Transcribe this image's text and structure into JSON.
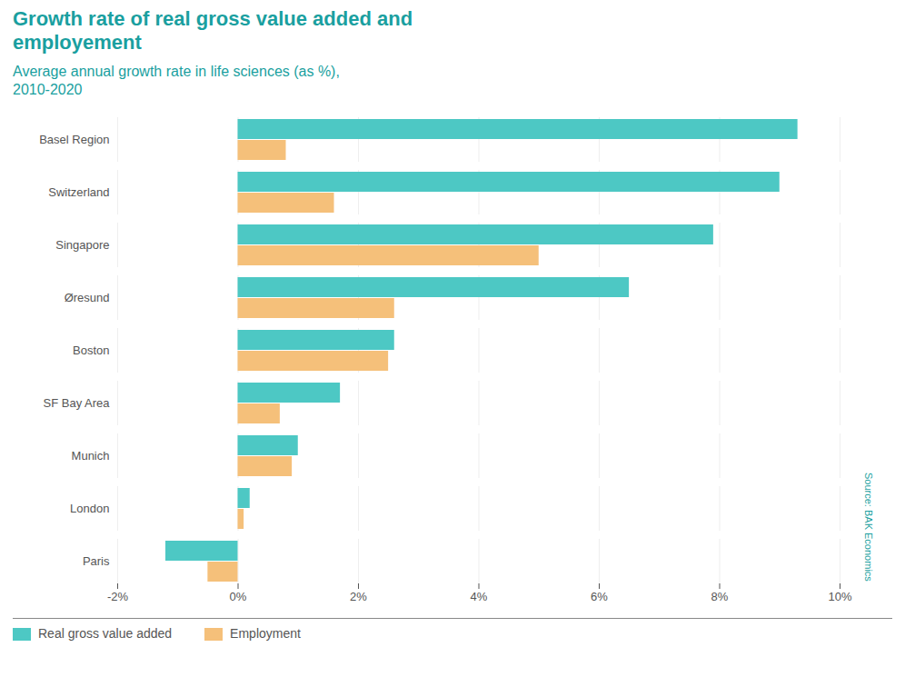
{
  "chart_data": {
    "type": "bar",
    "orientation": "horizontal",
    "title": "Growth rate of real gross value added and\nemployement",
    "subtitle": "Average annual growth rate in life sciences (as %),\n2010-2020",
    "annotations": [
      "Source: BAK Economics"
    ],
    "categories": [
      "Basel Region",
      "Switzerland",
      "Singapore",
      "Øresund",
      "Boston",
      "SF Bay Area",
      "Munich",
      "London",
      "Paris"
    ],
    "series": [
      {
        "name": "Real gross value added",
        "color": "#4DC8C4",
        "values": [
          9.3,
          9.0,
          7.9,
          6.5,
          2.6,
          1.7,
          1.0,
          0.2,
          -1.2
        ]
      },
      {
        "name": "Employment",
        "color": "#F5C07A",
        "values": [
          0.8,
          1.6,
          5.0,
          2.6,
          2.5,
          0.7,
          0.9,
          0.1,
          -0.5
        ]
      }
    ],
    "xlim": [
      -2,
      10
    ],
    "xticks": [
      {
        "value": -2,
        "label": "-2%"
      },
      {
        "value": 0,
        "label": "0%"
      },
      {
        "value": 2,
        "label": "2%"
      },
      {
        "value": 4,
        "label": "4%"
      },
      {
        "value": 6,
        "label": "6%"
      },
      {
        "value": 8,
        "label": "8%"
      },
      {
        "value": 10,
        "label": "10%"
      }
    ],
    "grid": true,
    "legend": "lower left"
  }
}
